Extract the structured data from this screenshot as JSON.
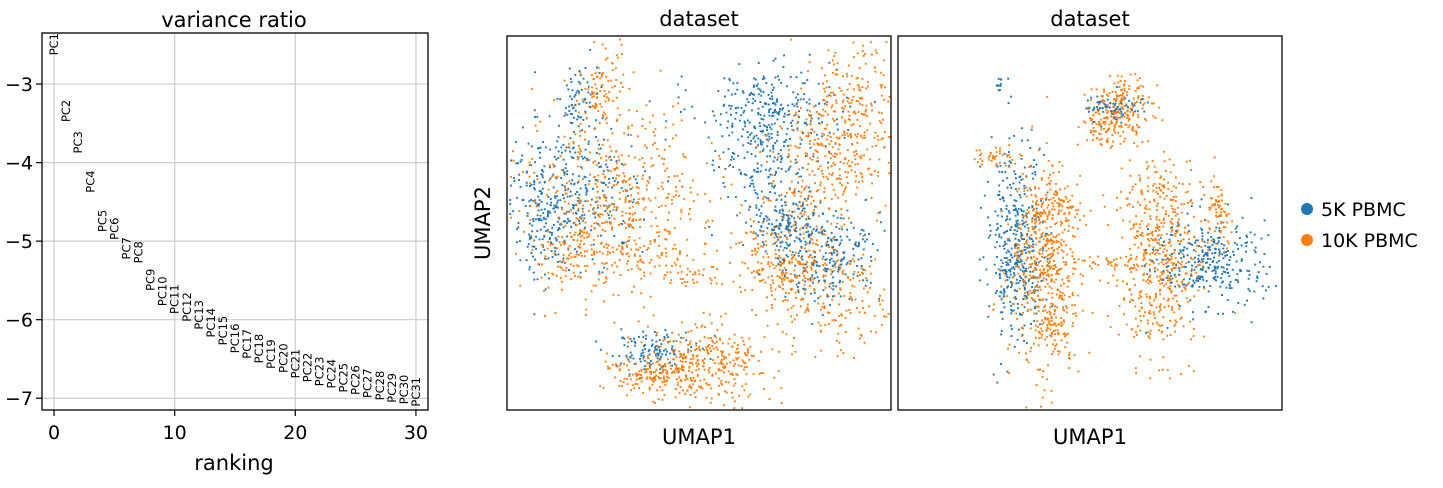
{
  "colors": {
    "series_a": "#1f77b4",
    "series_b": "#ff7f0e",
    "grid": "#cccccc"
  },
  "chart_data": [
    {
      "type": "scatter",
      "title": "variance ratio",
      "xlabel": "ranking",
      "ylabel": "",
      "xlim": [
        -1,
        31
      ],
      "ylim": [
        -7.15,
        -2.35
      ],
      "grid": true,
      "xticks": [
        0,
        10,
        20,
        30
      ],
      "yticks": [
        -7,
        -6,
        -5,
        -4,
        -3
      ],
      "ytick_labels": [
        "−7",
        "−6",
        "−5",
        "−4",
        "−3"
      ],
      "points": [
        {
          "x": 0,
          "y": -2.35,
          "label": "PC1"
        },
        {
          "x": 1,
          "y": -3.2,
          "label": "PC2"
        },
        {
          "x": 2,
          "y": -3.6,
          "label": "PC3"
        },
        {
          "x": 3,
          "y": -4.1,
          "label": "PC4"
        },
        {
          "x": 4,
          "y": -4.6,
          "label": "PC5"
        },
        {
          "x": 5,
          "y": -4.7,
          "label": "PC6"
        },
        {
          "x": 6,
          "y": -4.95,
          "label": "PC7"
        },
        {
          "x": 7,
          "y": -5.0,
          "label": "PC8"
        },
        {
          "x": 8,
          "y": -5.35,
          "label": "PC9"
        },
        {
          "x": 9,
          "y": -5.45,
          "label": "PC10"
        },
        {
          "x": 10,
          "y": -5.55,
          "label": "PC11"
        },
        {
          "x": 11,
          "y": -5.65,
          "label": "PC12"
        },
        {
          "x": 12,
          "y": -5.75,
          "label": "PC13"
        },
        {
          "x": 13,
          "y": -5.85,
          "label": "PC14"
        },
        {
          "x": 14,
          "y": -5.95,
          "label": "PC15"
        },
        {
          "x": 15,
          "y": -6.05,
          "label": "PC16"
        },
        {
          "x": 16,
          "y": -6.12,
          "label": "PC17"
        },
        {
          "x": 17,
          "y": -6.18,
          "label": "PC18"
        },
        {
          "x": 18,
          "y": -6.25,
          "label": "PC19"
        },
        {
          "x": 19,
          "y": -6.3,
          "label": "PC20"
        },
        {
          "x": 20,
          "y": -6.37,
          "label": "PC21"
        },
        {
          "x": 21,
          "y": -6.42,
          "label": "PC22"
        },
        {
          "x": 22,
          "y": -6.47,
          "label": "PC23"
        },
        {
          "x": 23,
          "y": -6.5,
          "label": "PC24"
        },
        {
          "x": 24,
          "y": -6.55,
          "label": "PC25"
        },
        {
          "x": 25,
          "y": -6.58,
          "label": "PC26"
        },
        {
          "x": 26,
          "y": -6.62,
          "label": "PC27"
        },
        {
          "x": 27,
          "y": -6.65,
          "label": "PC28"
        },
        {
          "x": 28,
          "y": -6.68,
          "label": "PC29"
        },
        {
          "x": 29,
          "y": -6.7,
          "label": "PC30"
        },
        {
          "x": 30,
          "y": -6.73,
          "label": "PC31"
        }
      ]
    },
    {
      "type": "scatter",
      "title": "dataset",
      "xlabel": "UMAP1",
      "ylabel": "UMAP2",
      "grid": false,
      "legend": "right",
      "series": [
        {
          "name": "5K PBMC",
          "color": "#1f77b4"
        },
        {
          "name": "10K PBMC",
          "color": "#ff7f0e"
        }
      ]
    },
    {
      "type": "scatter",
      "title": "dataset",
      "xlabel": "UMAP1",
      "ylabel": "",
      "grid": false
    }
  ],
  "legend": {
    "items": [
      {
        "label": "5K PBMC",
        "color": "#1f77b4"
      },
      {
        "label": "10K PBMC",
        "color": "#ff7f0e"
      }
    ]
  }
}
